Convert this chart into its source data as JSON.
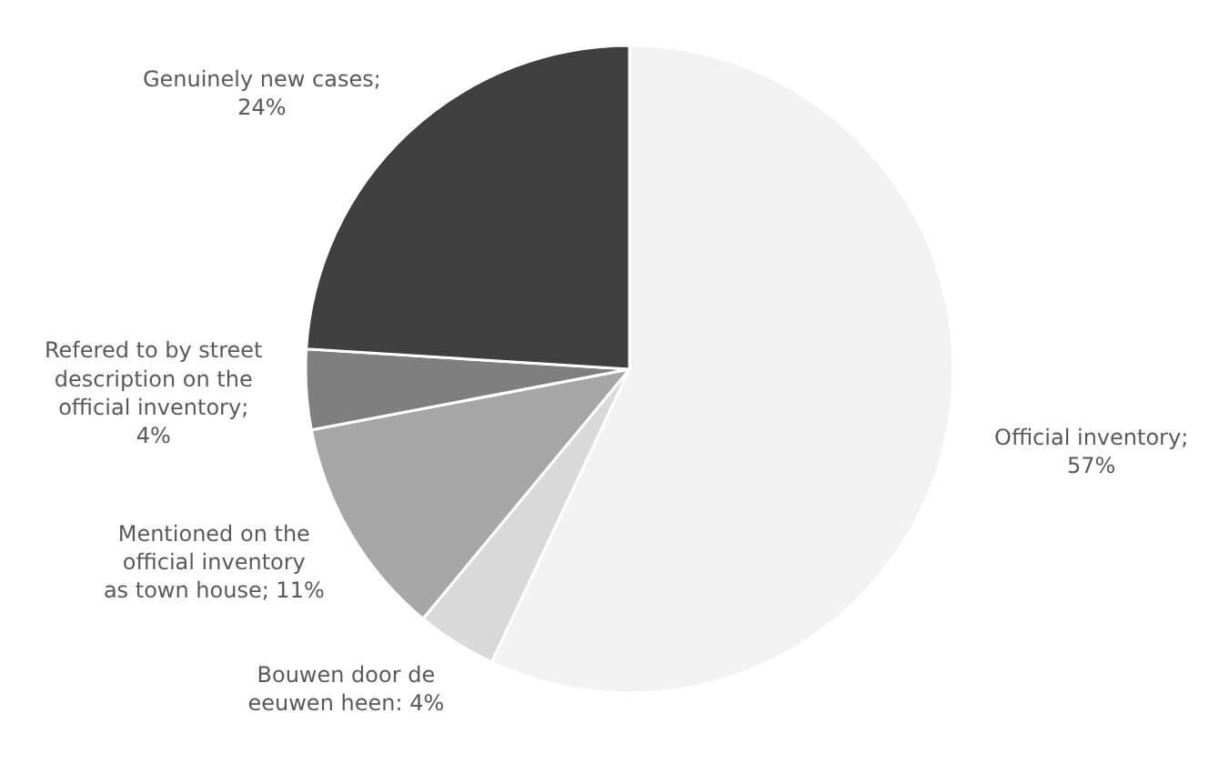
{
  "chart_data": {
    "type": "pie",
    "categories": [
      "Official inventory",
      "Bouwen door de eeuwen heen",
      "Mentioned on the official inventory as town house",
      "Refered to by street description on the official inventory",
      "Genuinely new cases"
    ],
    "values": [
      57,
      4,
      11,
      4,
      24
    ],
    "colors": [
      "#f2f2f2",
      "#d9d9d9",
      "#a6a6a6",
      "#7f7f7f",
      "#404040"
    ],
    "value_labels": [
      "; 57%",
      ": 4%",
      "; 11%",
      "; 4%",
      "; 24%"
    ],
    "legend": false
  }
}
